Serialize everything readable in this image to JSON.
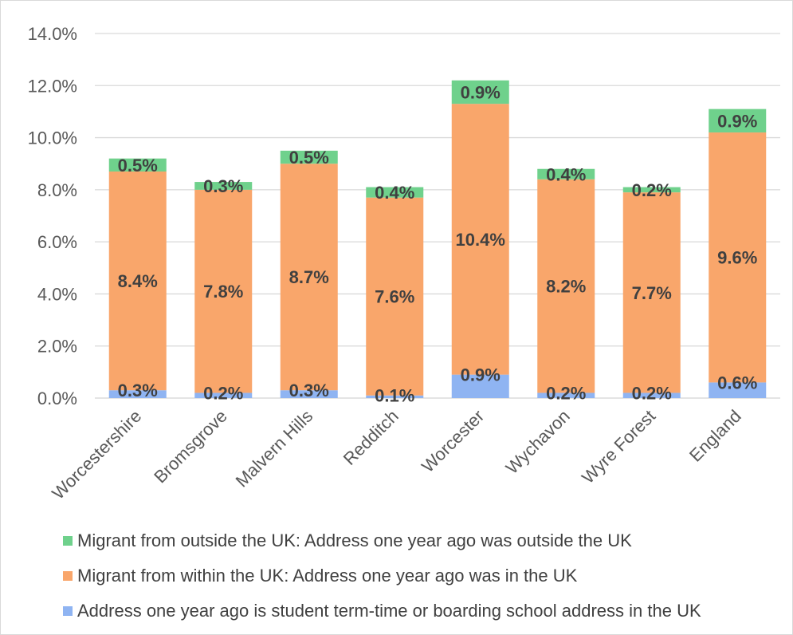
{
  "chart_data": {
    "type": "stacked-bar",
    "title": "",
    "xlabel": "",
    "ylabel": "",
    "ylim": [
      0,
      14
    ],
    "y_ticks": [
      "0.0%",
      "2.0%",
      "4.0%",
      "6.0%",
      "8.0%",
      "10.0%",
      "12.0%",
      "14.0%"
    ],
    "grid": true,
    "legend_position": "bottom",
    "categories": [
      "Worcestershire",
      "Bromsgrove",
      "Malvern Hills",
      "Redditch",
      "Worcester",
      "Wychavon",
      "Wyre Forest",
      "England"
    ],
    "series": [
      {
        "name": "Address one year ago is student term-time or boarding school address in the UK",
        "color": "#8fb4f2",
        "values": [
          0.3,
          0.2,
          0.3,
          0.1,
          0.9,
          0.2,
          0.2,
          0.6
        ],
        "labels": [
          "0.3%",
          "0.2%",
          "0.3%",
          "0.1%",
          "0.9%",
          "0.2%",
          "0.2%",
          "0.6%"
        ]
      },
      {
        "name": "Migrant from within the UK: Address one year ago was in the UK",
        "color": "#f9a66b",
        "values": [
          8.4,
          7.8,
          8.7,
          7.6,
          10.4,
          8.2,
          7.7,
          9.6
        ],
        "labels": [
          "8.4%",
          "7.8%",
          "8.7%",
          "7.6%",
          "10.4%",
          "8.2%",
          "7.7%",
          "9.6%"
        ]
      },
      {
        "name": "Migrant from outside the UK: Address one year ago was outside the UK",
        "color": "#6fd18c",
        "values": [
          0.5,
          0.3,
          0.5,
          0.4,
          0.9,
          0.4,
          0.2,
          0.9
        ],
        "labels": [
          "0.5%",
          "0.3%",
          "0.5%",
          "0.4%",
          "0.9%",
          "0.4%",
          "0.2%",
          "0.9%"
        ]
      }
    ],
    "legend_order": [
      2,
      1,
      0
    ]
  }
}
